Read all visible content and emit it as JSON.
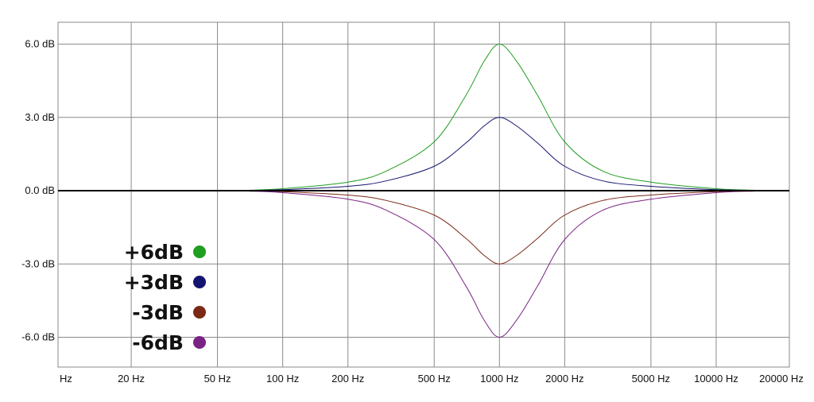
{
  "chart_data": {
    "type": "line",
    "x_scale": "log",
    "x_ticks": [
      {
        "label": "Hz",
        "value": 10
      },
      {
        "label": "20 Hz",
        "value": 20
      },
      {
        "label": "50 Hz",
        "value": 50
      },
      {
        "label": "100 Hz",
        "value": 100
      },
      {
        "label": "200 Hz",
        "value": 200
      },
      {
        "label": "500 Hz",
        "value": 500
      },
      {
        "label": "1000 Hz",
        "value": 1000
      },
      {
        "label": "2000 Hz",
        "value": 2000
      },
      {
        "label": "5000 Hz",
        "value": 5000
      },
      {
        "label": "10000 Hz",
        "value": 10000
      },
      {
        "label": "20000 Hz",
        "value": 20000
      }
    ],
    "y_ticks": [
      {
        "label": "6.0 dB",
        "value": 6
      },
      {
        "label": "3.0 dB",
        "value": 3
      },
      {
        "label": "0.0 dB",
        "value": 0
      },
      {
        "label": "-3.0 dB",
        "value": -3
      },
      {
        "label": "-6.0 dB",
        "value": -6
      }
    ],
    "xlim": [
      10,
      20000
    ],
    "ylim": [
      -7,
      7
    ],
    "grid": true,
    "legend_position": "bottom-left",
    "series": [
      {
        "name": "+6dB",
        "color": "#1f9e1f",
        "x": [
          70,
          100,
          200,
          300,
          500,
          700,
          850,
          1000,
          1200,
          1500,
          2000,
          3000,
          5000,
          10000,
          15000
        ],
        "y": [
          0.02,
          0.08,
          0.35,
          0.8,
          2.0,
          3.9,
          5.3,
          6.0,
          5.3,
          3.9,
          2.0,
          0.8,
          0.35,
          0.08,
          0.02
        ]
      },
      {
        "name": "+3dB",
        "color": "#141470",
        "x": [
          70,
          100,
          200,
          300,
          500,
          700,
          850,
          1000,
          1200,
          1500,
          2000,
          3000,
          5000,
          10000,
          15000
        ],
        "y": [
          0.01,
          0.04,
          0.18,
          0.4,
          1.0,
          1.95,
          2.65,
          3.0,
          2.65,
          1.95,
          1.0,
          0.4,
          0.18,
          0.04,
          0.01
        ]
      },
      {
        "name": "-3dB",
        "color": "#7a2a14",
        "x": [
          70,
          100,
          200,
          300,
          500,
          700,
          850,
          1000,
          1200,
          1500,
          2000,
          3000,
          5000,
          10000,
          15000
        ],
        "y": [
          -0.01,
          -0.04,
          -0.18,
          -0.4,
          -1.0,
          -1.95,
          -2.65,
          -3.0,
          -2.65,
          -1.95,
          -1.0,
          -0.4,
          -0.18,
          -0.04,
          -0.01
        ]
      },
      {
        "name": "-6dB",
        "color": "#7b2384",
        "x": [
          70,
          100,
          200,
          300,
          500,
          700,
          850,
          1000,
          1200,
          1500,
          2000,
          3000,
          5000,
          10000,
          15000
        ],
        "y": [
          -0.02,
          -0.08,
          -0.35,
          -0.8,
          -2.0,
          -3.9,
          -5.3,
          -6.0,
          -5.3,
          -3.9,
          -2.0,
          -0.8,
          -0.35,
          -0.08,
          -0.02
        ]
      }
    ]
  }
}
